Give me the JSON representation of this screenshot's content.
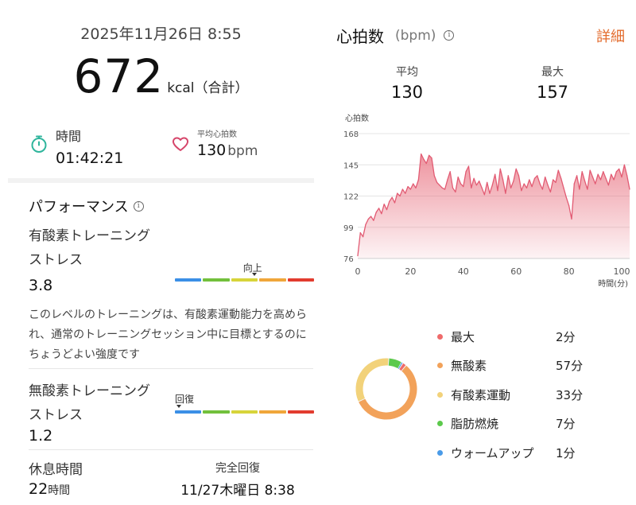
{
  "summary": {
    "datetime": "2025年11月26日 8:55",
    "calories_value": "672",
    "calories_unit": "kcal（合計）"
  },
  "stats": {
    "time_label": "時間",
    "time_value": "01:42:21",
    "avg_hr_label": "平均心拍数",
    "avg_hr_value": "130",
    "avg_hr_unit": "bpm"
  },
  "performance": {
    "title": "パフォーマンス",
    "aerobic": {
      "label_line1": "有酸素トレーニング",
      "label_line2": "ストレス",
      "value": "3.8",
      "marker_label": "向上",
      "marker_fraction": 0.57
    },
    "description": "このレベルのトレーニングは、有酸素運動能力を高められ、通常のトレーニングセッション中に目標とするのにちょうどよい強度です",
    "anaerobic": {
      "label_line1": "無酸素トレーニング",
      "label_line2": "ストレス",
      "value": "1.2",
      "marker_label": "回復",
      "marker_fraction": 0.03
    },
    "scale_colors": [
      "#3b8fe6",
      "#72c03c",
      "#d7d43a",
      "#f0a63a",
      "#e23c2f"
    ]
  },
  "recovery": {
    "rest_label": "休息時間",
    "rest_value": "22",
    "rest_unit": "時間",
    "full_label": "完全回復",
    "full_value": "11/27木曜日 8:38"
  },
  "heart_rate": {
    "title": "心拍数",
    "unit": "(bpm)",
    "detail_link": "詳細",
    "avg_label": "平均",
    "avg_value": "130",
    "max_label": "最大",
    "max_value": "157"
  },
  "chart_data": {
    "type": "area",
    "ylabel": "心拍数",
    "xlabel": "時間(分)",
    "yticks": [
      76,
      99,
      122,
      145,
      168
    ],
    "xticks": [
      0,
      20,
      40,
      60,
      80,
      100
    ],
    "ylim": [
      76,
      168
    ],
    "xlim": [
      0,
      103
    ],
    "color": "#e8707f",
    "x": [
      0,
      1,
      2,
      3,
      4,
      5,
      6,
      7,
      8,
      9,
      10,
      11,
      12,
      13,
      14,
      15,
      16,
      17,
      18,
      19,
      20,
      21,
      22,
      23,
      24,
      25,
      26,
      27,
      28,
      29,
      30,
      31,
      32,
      33,
      34,
      35,
      36,
      37,
      38,
      39,
      40,
      41,
      42,
      43,
      44,
      45,
      46,
      47,
      48,
      49,
      50,
      51,
      52,
      53,
      54,
      55,
      56,
      57,
      58,
      59,
      60,
      61,
      62,
      63,
      64,
      65,
      66,
      67,
      68,
      69,
      70,
      71,
      72,
      73,
      74,
      75,
      76,
      77,
      78,
      79,
      80,
      81,
      82,
      83,
      84,
      85,
      86,
      87,
      88,
      89,
      90,
      91,
      92,
      93,
      94,
      95,
      96,
      97,
      98,
      99,
      100,
      101,
      102,
      103
    ],
    "y": [
      78,
      95,
      92,
      101,
      105,
      107,
      104,
      110,
      113,
      109,
      116,
      112,
      118,
      121,
      117,
      124,
      122,
      127,
      124,
      129,
      127,
      131,
      128,
      134,
      153,
      149,
      146,
      152,
      150,
      137,
      132,
      130,
      128,
      127,
      134,
      140,
      128,
      125,
      136,
      131,
      129,
      140,
      144,
      128,
      135,
      130,
      133,
      128,
      123,
      132,
      124,
      130,
      138,
      126,
      142,
      134,
      124,
      137,
      128,
      133,
      142,
      137,
      126,
      131,
      128,
      134,
      129,
      135,
      137,
      131,
      127,
      136,
      130,
      125,
      134,
      132,
      141,
      135,
      128,
      121,
      115,
      105,
      131,
      137,
      127,
      140,
      133,
      127,
      141,
      136,
      131,
      138,
      134,
      140,
      135,
      130,
      138,
      134,
      140,
      142,
      136,
      145,
      137,
      127
    ]
  },
  "zones": [
    {
      "name": "最大",
      "value": "2分",
      "minutes": 2,
      "color": "#ef6b6b"
    },
    {
      "name": "無酸素",
      "value": "57分",
      "minutes": 57,
      "color": "#f2a25a"
    },
    {
      "name": "有酸素運動",
      "value": "33分",
      "minutes": 33,
      "color": "#f2d27a"
    },
    {
      "name": "脂肪燃焼",
      "value": "7分",
      "minutes": 7,
      "color": "#5cc94c"
    },
    {
      "name": "ウォームアップ",
      "value": "1分",
      "minutes": 1,
      "color": "#4a9be8"
    }
  ]
}
